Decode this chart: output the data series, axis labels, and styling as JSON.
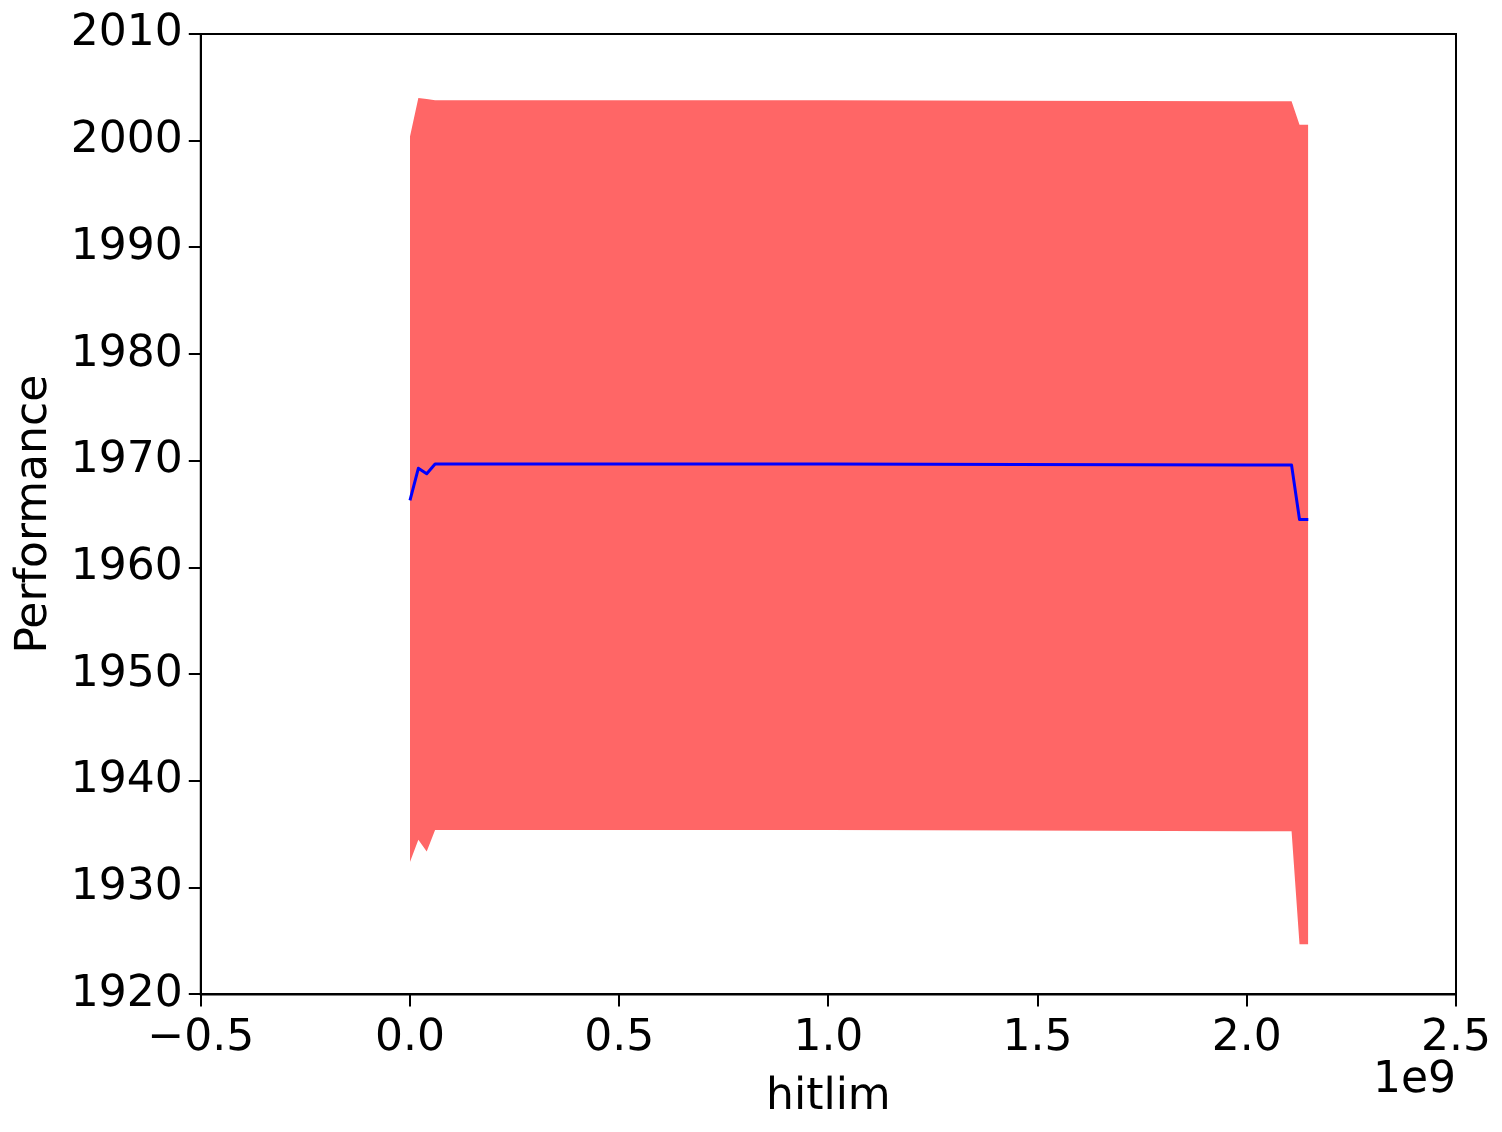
{
  "chart_data": {
    "type": "line",
    "xlabel": "hitlim",
    "ylabel": "Performance",
    "x": [
      0,
      0.02,
      0.04,
      0.06,
      1.0,
      2.0,
      2.107,
      2.126,
      2.147
    ],
    "series": [
      {
        "color": "#0000ff",
        "values": [
          1966.3,
          1969.3,
          1968.8,
          1969.7,
          1969.7,
          1969.6,
          1969.6,
          1964.5,
          1964.5
        ],
        "lower": [
          1932.4,
          1934.5,
          1933.4,
          1935.4,
          1935.4,
          1935.3,
          1935.3,
          1924.7,
          1924.7
        ],
        "upper": [
          2000.4,
          2004,
          2003.9,
          2003.8,
          2003.8,
          2003.7,
          2003.7,
          2001.5,
          2001.5
        ]
      }
    ],
    "xlim": [
      -0.5,
      2.5
    ],
    "xticks": [
      {
        "value": -0.5,
        "label": "−0.5"
      },
      {
        "value": 0,
        "label": "0.0"
      },
      {
        "value": 0.5,
        "label": "0.5"
      },
      {
        "value": 1,
        "label": "1.0"
      },
      {
        "value": 1.5,
        "label": "1.5"
      },
      {
        "value": 2,
        "label": "2.0"
      },
      {
        "value": 2.5,
        "label": "2.5"
      }
    ],
    "ylim": [
      1920,
      2010
    ],
    "yticks": [
      1920,
      1930,
      1940,
      1950,
      1960,
      1970,
      1980,
      1990,
      2000,
      2010
    ],
    "annotations": [
      "1e9"
    ],
    "grid": false,
    "legend": false,
    "marker": "none",
    "line_style": "solid"
  }
}
